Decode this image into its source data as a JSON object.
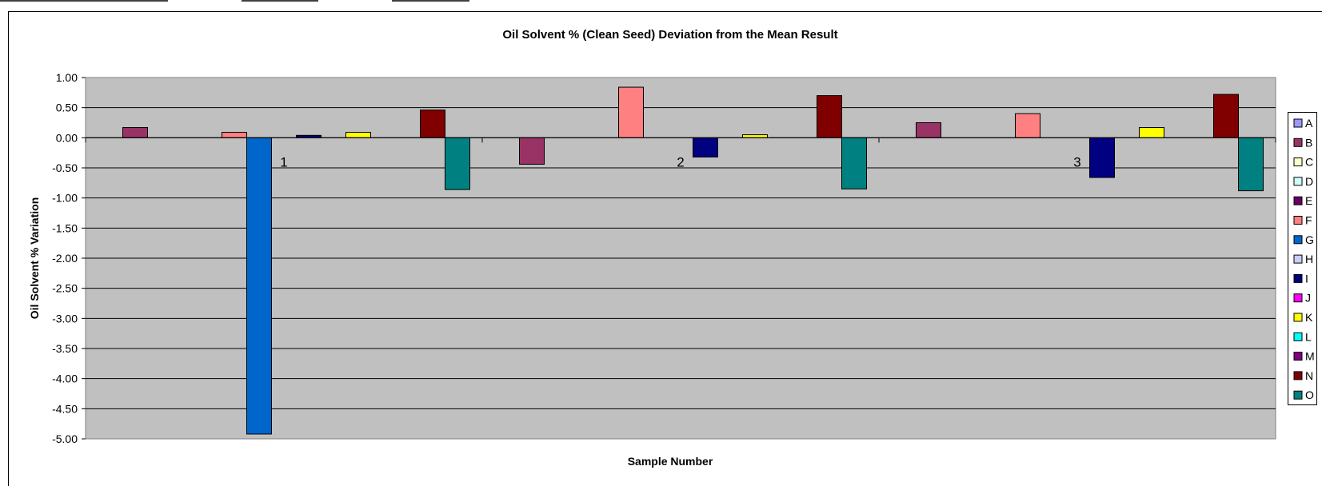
{
  "chart_data": {
    "type": "bar",
    "title": "Oil Solvent % (Clean Seed) Deviation from the Mean Result",
    "xlabel": "Sample Number",
    "ylabel": "Oil Solvent % Variation",
    "categories": [
      "1",
      "2",
      "3"
    ],
    "ylim": [
      -5.0,
      1.0
    ],
    "yticks": [
      "1.00",
      "0.50",
      "0.00",
      "-0.50",
      "-1.00",
      "-1.50",
      "-2.00",
      "-2.50",
      "-3.00",
      "-3.50",
      "-4.00",
      "-4.50",
      "-5.00"
    ],
    "grid": true,
    "legend_position": "right",
    "series": [
      {
        "name": "A",
        "color": "#9999FF",
        "values": [
          null,
          null,
          null
        ]
      },
      {
        "name": "B",
        "color": "#993366",
        "values": [
          0.17,
          -0.44,
          0.25
        ]
      },
      {
        "name": "C",
        "color": "#FFFFCC",
        "values": [
          null,
          null,
          null
        ]
      },
      {
        "name": "D",
        "color": "#CCFFFF",
        "values": [
          null,
          null,
          null
        ]
      },
      {
        "name": "E",
        "color": "#660066",
        "values": [
          null,
          null,
          null
        ]
      },
      {
        "name": "F",
        "color": "#FF8080",
        "values": [
          0.09,
          0.84,
          0.4
        ]
      },
      {
        "name": "G",
        "color": "#0066CC",
        "values": [
          -4.92,
          null,
          null
        ]
      },
      {
        "name": "H",
        "color": "#CCCCFF",
        "values": [
          null,
          null,
          null
        ]
      },
      {
        "name": "I",
        "color": "#000080",
        "values": [
          0.04,
          -0.32,
          -0.66
        ]
      },
      {
        "name": "J",
        "color": "#FF00FF",
        "values": [
          null,
          null,
          null
        ]
      },
      {
        "name": "K",
        "color": "#FFFF00",
        "values": [
          0.09,
          0.05,
          0.17
        ]
      },
      {
        "name": "L",
        "color": "#00FFFF",
        "values": [
          null,
          null,
          null
        ]
      },
      {
        "name": "M",
        "color": "#800080",
        "values": [
          null,
          null,
          null
        ]
      },
      {
        "name": "N",
        "color": "#800000",
        "values": [
          0.46,
          0.7,
          0.72
        ]
      },
      {
        "name": "O",
        "color": "#008080",
        "values": [
          -0.86,
          -0.85,
          -0.88
        ]
      }
    ]
  }
}
